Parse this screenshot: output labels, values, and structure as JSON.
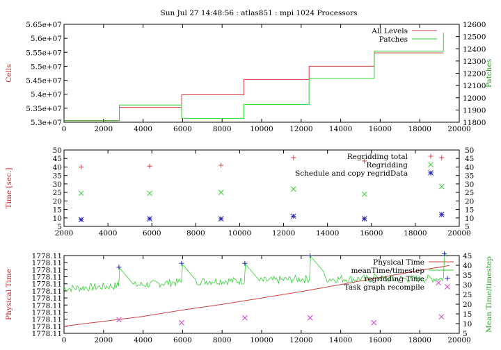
{
  "title": "Sun Jul 27 14:48:56 : atlas851 : mpi 1024 Processors",
  "colors": {
    "red": "#d04040",
    "green": "#30d030",
    "blue": "#2020b0",
    "magenta": "#d040d0",
    "axis": "#000000"
  },
  "chart_data": [
    {
      "type": "line",
      "ylabel": "Cells",
      "y2label": "Patches",
      "xlim": [
        0,
        20000
      ],
      "ylim": [
        53000000,
        56500000
      ],
      "y2lim": [
        11800,
        12600
      ],
      "xticks": [
        "0",
        "2000",
        "4000",
        "6000",
        "8000",
        "10000",
        "12000",
        "14000",
        "16000",
        "18000",
        "20000"
      ],
      "yticks": [
        "5.3e+07",
        "5.35e+07",
        "5.4e+07",
        "5.45e+07",
        "5.5e+07",
        "5.55e+07",
        "5.6e+07",
        "5.65e+07"
      ],
      "y2ticks": [
        "11800",
        "11900",
        "12000",
        "12100",
        "12200",
        "12300",
        "12400",
        "12500",
        "12600"
      ],
      "series": [
        {
          "name": "All Levels",
          "color": "#d04040",
          "axis": "y",
          "x": [
            0,
            2800,
            2800,
            5950,
            5950,
            9100,
            9100,
            12400,
            12400,
            15700,
            15700,
            19200
          ],
          "y": [
            53060000,
            53060000,
            53530000,
            53530000,
            53980000,
            53980000,
            54530000,
            54530000,
            55000000,
            55000000,
            55480000,
            55480000
          ]
        },
        {
          "name": "Patches",
          "color": "#30d030",
          "axis": "y2",
          "x": [
            0,
            2800,
            2800,
            5950,
            5950,
            9100,
            9100,
            12400,
            12400,
            15700,
            15700,
            19200,
            19200
          ],
          "y": [
            11812,
            11812,
            11940,
            11940,
            11832,
            11832,
            11945,
            11945,
            12158,
            12158,
            12380,
            12380,
            12530
          ]
        }
      ]
    },
    {
      "type": "scatter",
      "ylabel": "Time [sec.]",
      "xlim": [
        2000,
        20000
      ],
      "ylim": [
        5,
        50
      ],
      "xticks": [
        "2000",
        "4000",
        "6000",
        "8000",
        "10000",
        "12000",
        "14000",
        "16000",
        "18000",
        "20000"
      ],
      "yticks": [
        "5",
        "10",
        "15",
        "20",
        "25",
        "30",
        "35",
        "40",
        "45",
        "50"
      ],
      "series": [
        {
          "name": "Regridding total",
          "color": "#d04040",
          "marker": "+",
          "x": [
            2780,
            5900,
            9150,
            12450,
            15680,
            19200
          ],
          "y": [
            40,
            40.5,
            41,
            45.5,
            43.5,
            45.5
          ]
        },
        {
          "name": "Regridding",
          "color": "#30d030",
          "marker": "x",
          "x": [
            2780,
            5900,
            9150,
            12450,
            15680,
            19200
          ],
          "y": [
            24.5,
            24.5,
            25,
            27,
            24,
            28.5
          ]
        },
        {
          "name": "Schedule and copy regridData",
          "color": "#2020b0",
          "marker": "*",
          "x": [
            2780,
            5900,
            9150,
            12450,
            15680,
            19200
          ],
          "y": [
            9,
            9.5,
            9.5,
            11,
            9.5,
            12
          ]
        }
      ]
    },
    {
      "type": "line",
      "ylabel": "Physical Time",
      "y2label": "Mean Time/timestep",
      "xlim": [
        0,
        20000
      ],
      "ylim": [
        0,
        11
      ],
      "y2lim": [
        5,
        45
      ],
      "xticks": [
        "0",
        "2000",
        "4000",
        "6000",
        "8000",
        "10000",
        "12000",
        "14000",
        "16000",
        "18000",
        "20000"
      ],
      "yticks": [
        "1778.11",
        "1778.11",
        "1778.11",
        "1778.11",
        "1778.11",
        "1778.11",
        "1778.11",
        "1778.11",
        "1778.11",
        "1778.11",
        "1778.11",
        "1778.11"
      ],
      "y2ticks": [
        "5",
        "10",
        "15",
        "20",
        "25",
        "30",
        "35",
        "40",
        "45"
      ],
      "series": [
        {
          "name": "Physical Time",
          "color": "#d04040",
          "axis": "y",
          "x": [
            0,
            2000,
            4000,
            6000,
            8000,
            10000,
            12000,
            14000,
            16000,
            18000,
            19500
          ],
          "y": [
            1.0,
            1.7,
            2.4,
            3.3,
            4.1,
            5.0,
            5.9,
            6.9,
            7.9,
            8.9,
            9.6
          ]
        },
        {
          "name": "meanTime/timestep",
          "color": "#30d030",
          "axis": "y2",
          "baseline": [
            28,
            29,
            30,
            31.5,
            32,
            32,
            33,
            33,
            33,
            33,
            33.5
          ],
          "baseline_x": [
            0,
            2000,
            4000,
            6000,
            8000,
            10000,
            12000,
            14000,
            16000,
            18000,
            20000
          ],
          "spikes_x": [
            2780,
            5950,
            9150,
            12450,
            15680,
            19250
          ],
          "spikes_y": [
            39,
            41,
            41,
            45,
            36,
            46
          ]
        },
        {
          "name": "regridding Time",
          "color": "#2020b0",
          "marker": "+",
          "axis": "y2",
          "x": [
            2780,
            5950,
            9150,
            12450,
            19250
          ],
          "y": [
            39,
            41,
            41,
            45,
            46
          ]
        },
        {
          "name": "Task graph recompile",
          "color": "#d040d0",
          "marker": "x",
          "axis": "y2",
          "x": [
            2780,
            5950,
            9150,
            12450,
            15680,
            18950,
            19100
          ],
          "y": [
            12,
            10.5,
            13,
            13,
            10.5,
            31,
            13.5
          ]
        }
      ]
    }
  ]
}
